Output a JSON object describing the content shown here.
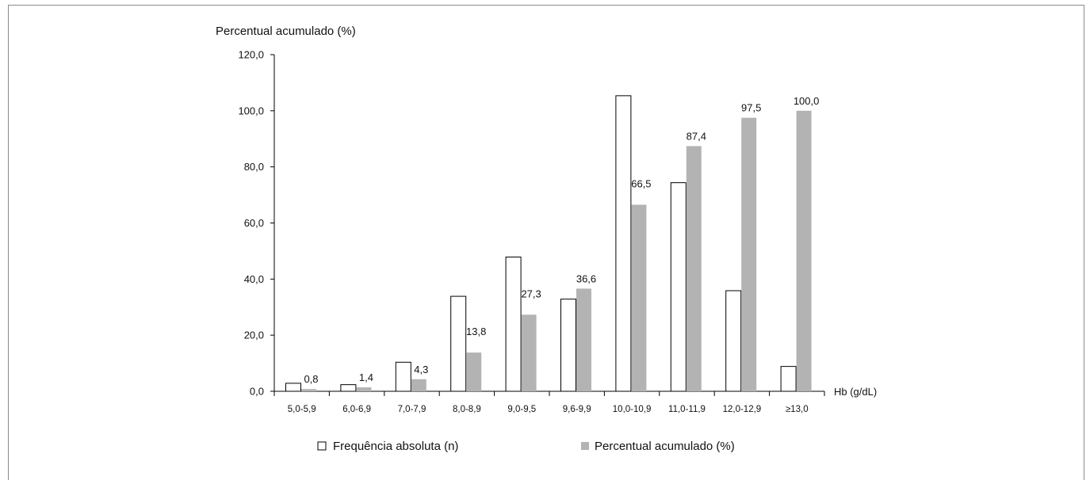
{
  "chart_data": {
    "type": "bar",
    "ylabel": "Percentual acumulado (%)",
    "xlabel": "Hb (g/dL)",
    "ylim": [
      0,
      120
    ],
    "yticks": [
      "0,0",
      "20,0",
      "40,0",
      "60,0",
      "80,0",
      "100,0",
      "120,0"
    ],
    "categories": [
      "5,0-5,9",
      "6,0-6,9",
      "7,0-7,9",
      "8,0-8,9",
      "9,0-9,5",
      "9,6-9,9",
      "10,0-10,9",
      "11,0-11,9",
      "12,0-12,9",
      "≥13,0"
    ],
    "series": [
      {
        "name": "Frequência absoluta (n)",
        "color": "#ffffff",
        "values": [
          3,
          2.5,
          10.5,
          34,
          48,
          33,
          105.5,
          74.5,
          36,
          9
        ]
      },
      {
        "name": "Percentual acumulado (%)",
        "color": "#b3b3b3",
        "values": [
          0.8,
          1.4,
          4.3,
          13.8,
          27.3,
          36.6,
          66.5,
          87.4,
          97.5,
          100.0
        ],
        "labels": [
          "0,8",
          "1,4",
          "4,3",
          "13,8",
          "27,3",
          "36,6",
          "66,5",
          "87,4",
          "97,5",
          "100,0"
        ]
      }
    ],
    "grid": false,
    "legend": "bottom"
  }
}
